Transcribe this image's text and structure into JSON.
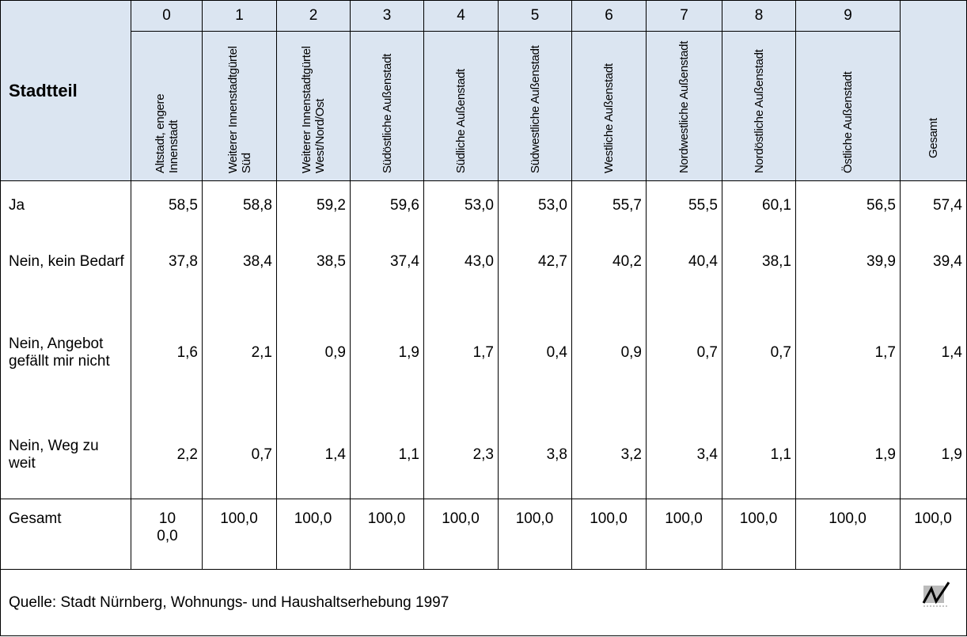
{
  "table": {
    "row_header": "Stadtteil",
    "columns": [
      {
        "number": "0",
        "label": "Altstadt, engere Innenstadt"
      },
      {
        "number": "1",
        "label": "Weiterer Innenstadtgürtel Süd"
      },
      {
        "number": "2",
        "label": "Weiterer Innenstadtgürtel West/Nord/Ost"
      },
      {
        "number": "3",
        "label": "Südöstliche Außenstadt"
      },
      {
        "number": "4",
        "label": "Südliche Außenstadt"
      },
      {
        "number": "5",
        "label": "Südwestliche Außenstadt"
      },
      {
        "number": "6",
        "label": "Westliche Außenstadt"
      },
      {
        "number": "7",
        "label": "Nordwestliche Außenstadt"
      },
      {
        "number": "8",
        "label": "Nordöstliche Außenstadt"
      },
      {
        "number": "9",
        "label": "Östliche Außenstadt"
      }
    ],
    "total_header": "Gesamt",
    "rows": [
      {
        "label": "Ja",
        "cells": [
          "58,5",
          "58,8",
          "59,2",
          "59,6",
          "53,0",
          "53,0",
          "55,7",
          "55,5",
          "60,1",
          "56,5",
          "57,4"
        ]
      },
      {
        "label": "Nein, kein Bedarf",
        "cells": [
          "37,8",
          "38,4",
          "38,5",
          "37,4",
          "43,0",
          "42,7",
          "40,2",
          "40,4",
          "38,1",
          "39,9",
          "39,4"
        ]
      },
      {
        "label": "Nein, Angebot gefällt mir nicht",
        "cells": [
          "1,6",
          "2,1",
          "0,9",
          "1,9",
          "1,7",
          "0,4",
          "0,9",
          "0,7",
          "0,7",
          "1,7",
          "1,4"
        ]
      },
      {
        "label": "Nein, Weg zu weit",
        "cells": [
          "2,2",
          "0,7",
          "1,4",
          "1,1",
          "2,3",
          "3,8",
          "3,2",
          "3,4",
          "1,1",
          "1,9",
          "1,9"
        ]
      }
    ],
    "total_row": {
      "label": "Gesamt",
      "cells": [
        "100,0",
        "100,0",
        "100,0",
        "100,0",
        "100,0",
        "100,0",
        "100,0",
        "100,0",
        "100,0",
        "100,0",
        "100,0"
      ]
    },
    "source": "Quelle: Stadt Nürnberg, Wohnungs- und Haushaltserhebung 1997"
  }
}
